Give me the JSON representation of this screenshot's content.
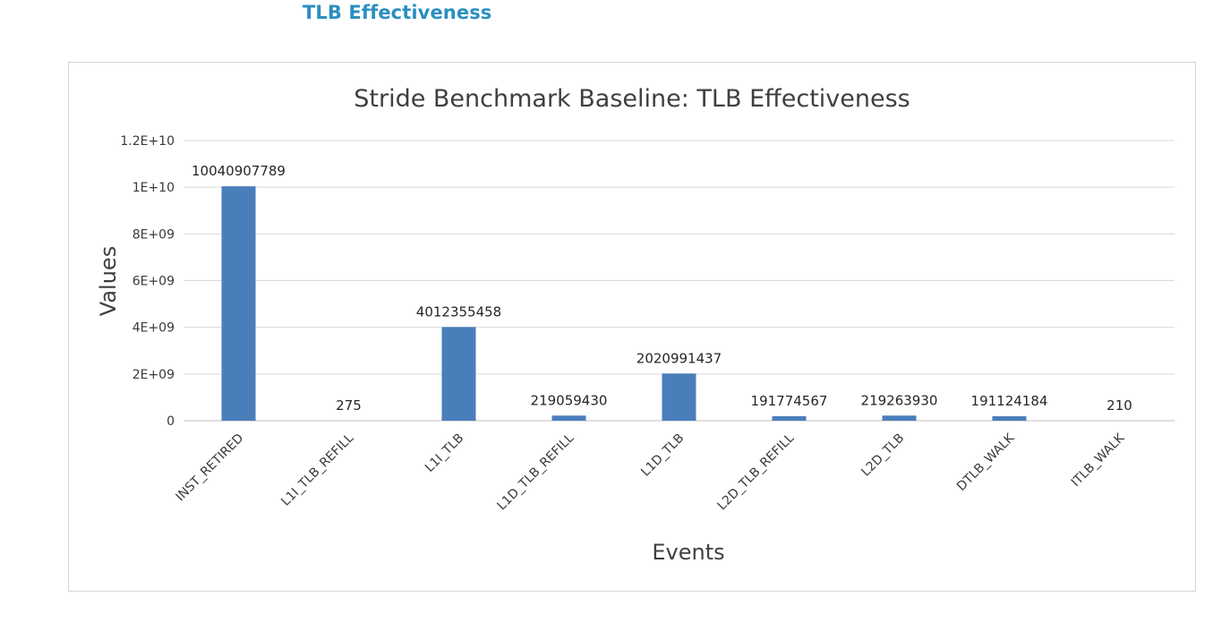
{
  "page": {
    "heading": "TLB Effectiveness"
  },
  "chart_data": {
    "type": "bar",
    "title": "Stride Benchmark Baseline: TLB Effectiveness",
    "xlabel": "Events",
    "ylabel": "Values",
    "categories": [
      "INST_RETIRED",
      "L1I_TLB_REFILL",
      "L1I_TLB",
      "L1D_TLB_REFILL",
      "L1D_TLB",
      "L2D_TLB_REFILL",
      "L2D_TLB",
      "DTLB_WALK",
      "ITLB_WALK"
    ],
    "values": [
      10040907789,
      275,
      4012355458,
      219059430,
      2020991437,
      191774567,
      219263930,
      191124184,
      210
    ],
    "data_labels": [
      "10040907789",
      "275",
      "4012355458",
      "219059430",
      "2020991437",
      "191774567",
      "219263930",
      "191124184",
      "210"
    ],
    "ylim": [
      0,
      12000000000
    ],
    "y_ticks": [
      0,
      2000000000,
      4000000000,
      6000000000,
      8000000000,
      10000000000,
      12000000000
    ],
    "y_tick_labels": [
      "0",
      "2E+09",
      "4E+09",
      "6E+09",
      "8E+09",
      "1E+10",
      "1.2E+10"
    ],
    "grid": true,
    "legend": "none",
    "bar_color": "#4a7ebb"
  }
}
